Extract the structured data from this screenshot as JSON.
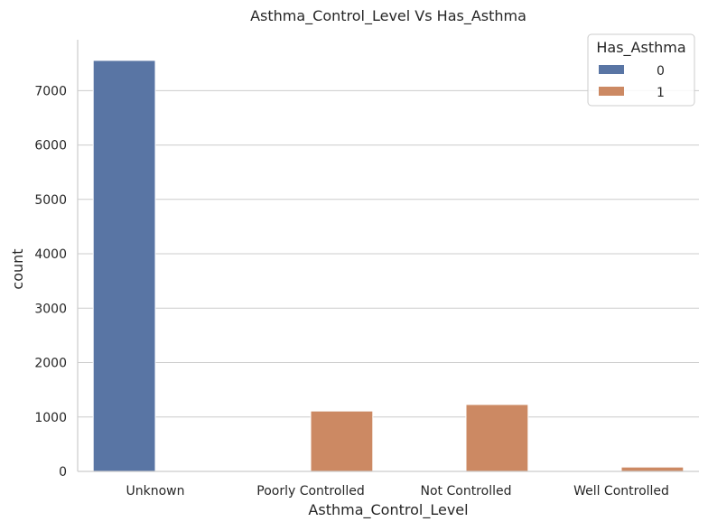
{
  "chart_data": {
    "type": "bar",
    "title": "Asthma_Control_Level Vs Has_Asthma",
    "xlabel": "Asthma_Control_Level",
    "ylabel": "count",
    "categories": [
      "Unknown",
      "Poorly Controlled",
      "Not Controlled",
      "Well Controlled"
    ],
    "series": [
      {
        "name": "0",
        "color": "#5975a4",
        "values": [
          7555,
          0,
          0,
          0
        ]
      },
      {
        "name": "1",
        "color": "#cc8963",
        "values": [
          0,
          1110,
          1230,
          80
        ]
      }
    ],
    "ylim": [
      0,
      7935
    ],
    "yticks": [
      0,
      1000,
      2000,
      3000,
      4000,
      5000,
      6000,
      7000
    ],
    "grid": "y",
    "legend": {
      "title": "Has_Asthma",
      "placement": "top-right"
    }
  }
}
